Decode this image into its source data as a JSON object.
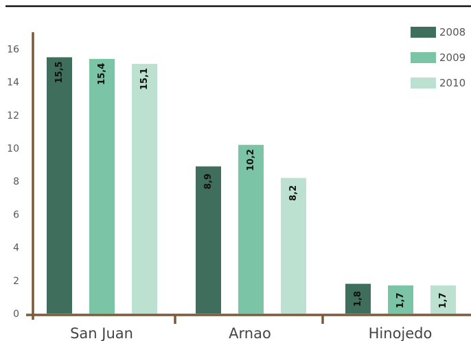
{
  "chart_data": {
    "type": "bar",
    "title": "",
    "xlabel": "",
    "ylabel": "",
    "ylim": [
      0,
      17
    ],
    "yticks": [
      0,
      2,
      4,
      6,
      8,
      10,
      12,
      14,
      16
    ],
    "grid": false,
    "legend_position": "top-right",
    "categories": [
      "San Juan",
      "Arnao",
      "Hinojedo"
    ],
    "series": [
      {
        "name": "2008",
        "color": "#3f6e5c",
        "values": [
          15.5,
          8.9,
          1.8
        ],
        "labels": [
          "15,5",
          "8,9",
          "1,8"
        ]
      },
      {
        "name": "2009",
        "color": "#7bc4a5",
        "values": [
          15.4,
          10.2,
          1.7
        ],
        "labels": [
          "15,4",
          "10,2",
          "1,7"
        ]
      },
      {
        "name": "2010",
        "color": "#bde1d0",
        "values": [
          15.1,
          8.2,
          1.7
        ],
        "labels": [
          "15,1",
          "8,2",
          "1,7"
        ]
      }
    ],
    "axis_color": "#7a5a3a"
  }
}
